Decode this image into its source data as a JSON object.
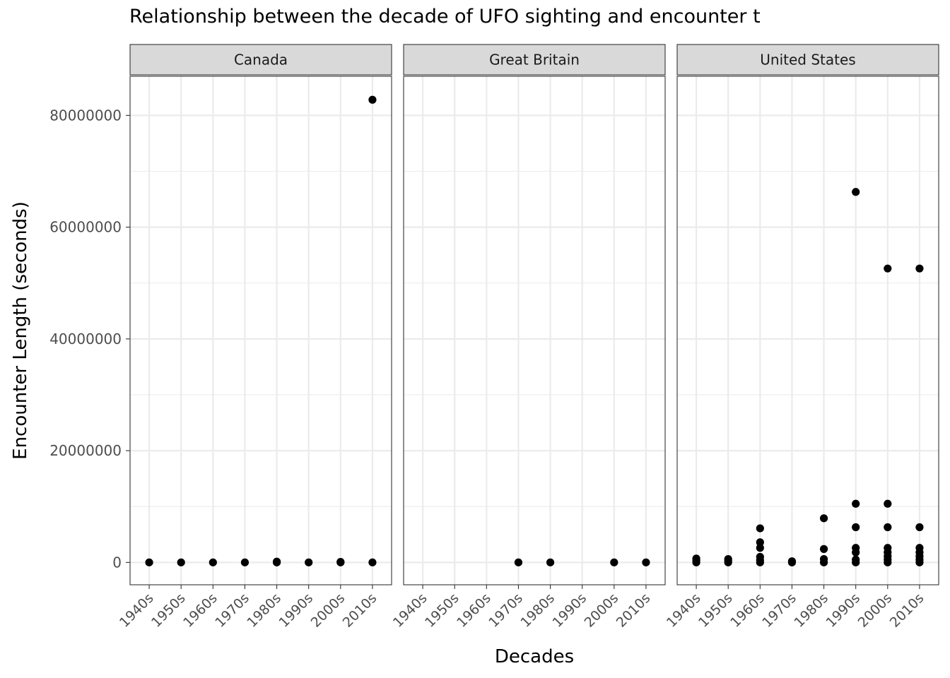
{
  "chart_data": {
    "type": "scatter",
    "title": "Relationship between the decade of UFO sighting and encounter t",
    "xlabel": "Decades",
    "ylabel": "Encounter Length (seconds)",
    "categories": [
      "1940s",
      "1950s",
      "1960s",
      "1970s",
      "1980s",
      "1990s",
      "2000s",
      "2010s"
    ],
    "ylim": [
      -4000000,
      87000000
    ],
    "yticks": [
      0,
      20000000,
      40000000,
      60000000,
      80000000
    ],
    "ytick_labels": [
      "0",
      "20000000",
      "40000000",
      "60000000",
      "80000000"
    ],
    "grid": true,
    "facets": [
      {
        "name": "Canada",
        "points": [
          {
            "x": "1940s",
            "y": 0
          },
          {
            "x": "1950s",
            "y": 0
          },
          {
            "x": "1960s",
            "y": 0
          },
          {
            "x": "1970s",
            "y": 0
          },
          {
            "x": "1980s",
            "y": 0
          },
          {
            "x": "1980s",
            "y": 150000
          },
          {
            "x": "1990s",
            "y": 0
          },
          {
            "x": "2000s",
            "y": 0
          },
          {
            "x": "2000s",
            "y": 100000
          },
          {
            "x": "2010s",
            "y": 0
          },
          {
            "x": "2010s",
            "y": 82800000
          }
        ]
      },
      {
        "name": "Great Britain",
        "points": [
          {
            "x": "1970s",
            "y": 0
          },
          {
            "x": "1980s",
            "y": 0
          },
          {
            "x": "2000s",
            "y": 0
          },
          {
            "x": "2010s",
            "y": 0
          }
        ]
      },
      {
        "name": "United States",
        "points": [
          {
            "x": "1940s",
            "y": 0
          },
          {
            "x": "1940s",
            "y": 300000
          },
          {
            "x": "1940s",
            "y": 700000
          },
          {
            "x": "1950s",
            "y": 0
          },
          {
            "x": "1950s",
            "y": 300000
          },
          {
            "x": "1950s",
            "y": 600000
          },
          {
            "x": "1960s",
            "y": 0
          },
          {
            "x": "1960s",
            "y": 400000
          },
          {
            "x": "1960s",
            "y": 1000000
          },
          {
            "x": "1960s",
            "y": 2600000
          },
          {
            "x": "1960s",
            "y": 3600000
          },
          {
            "x": "1960s",
            "y": 6100000
          },
          {
            "x": "1970s",
            "y": 0
          },
          {
            "x": "1970s",
            "y": 200000
          },
          {
            "x": "1980s",
            "y": 0
          },
          {
            "x": "1980s",
            "y": 600000
          },
          {
            "x": "1980s",
            "y": 2400000
          },
          {
            "x": "1980s",
            "y": 7900000
          },
          {
            "x": "1990s",
            "y": 0
          },
          {
            "x": "1990s",
            "y": 500000
          },
          {
            "x": "1990s",
            "y": 1800000
          },
          {
            "x": "1990s",
            "y": 2600000
          },
          {
            "x": "1990s",
            "y": 6300000
          },
          {
            "x": "1990s",
            "y": 10500000
          },
          {
            "x": "1990s",
            "y": 66300000
          },
          {
            "x": "2000s",
            "y": 0
          },
          {
            "x": "2000s",
            "y": 500000
          },
          {
            "x": "2000s",
            "y": 1100000
          },
          {
            "x": "2000s",
            "y": 1800000
          },
          {
            "x": "2000s",
            "y": 2600000
          },
          {
            "x": "2000s",
            "y": 6300000
          },
          {
            "x": "2000s",
            "y": 10500000
          },
          {
            "x": "2000s",
            "y": 52600000
          },
          {
            "x": "2010s",
            "y": 0
          },
          {
            "x": "2010s",
            "y": 500000
          },
          {
            "x": "2010s",
            "y": 1100000
          },
          {
            "x": "2010s",
            "y": 1800000
          },
          {
            "x": "2010s",
            "y": 2600000
          },
          {
            "x": "2010s",
            "y": 6300000
          },
          {
            "x": "2010s",
            "y": 52600000
          }
        ]
      }
    ]
  }
}
